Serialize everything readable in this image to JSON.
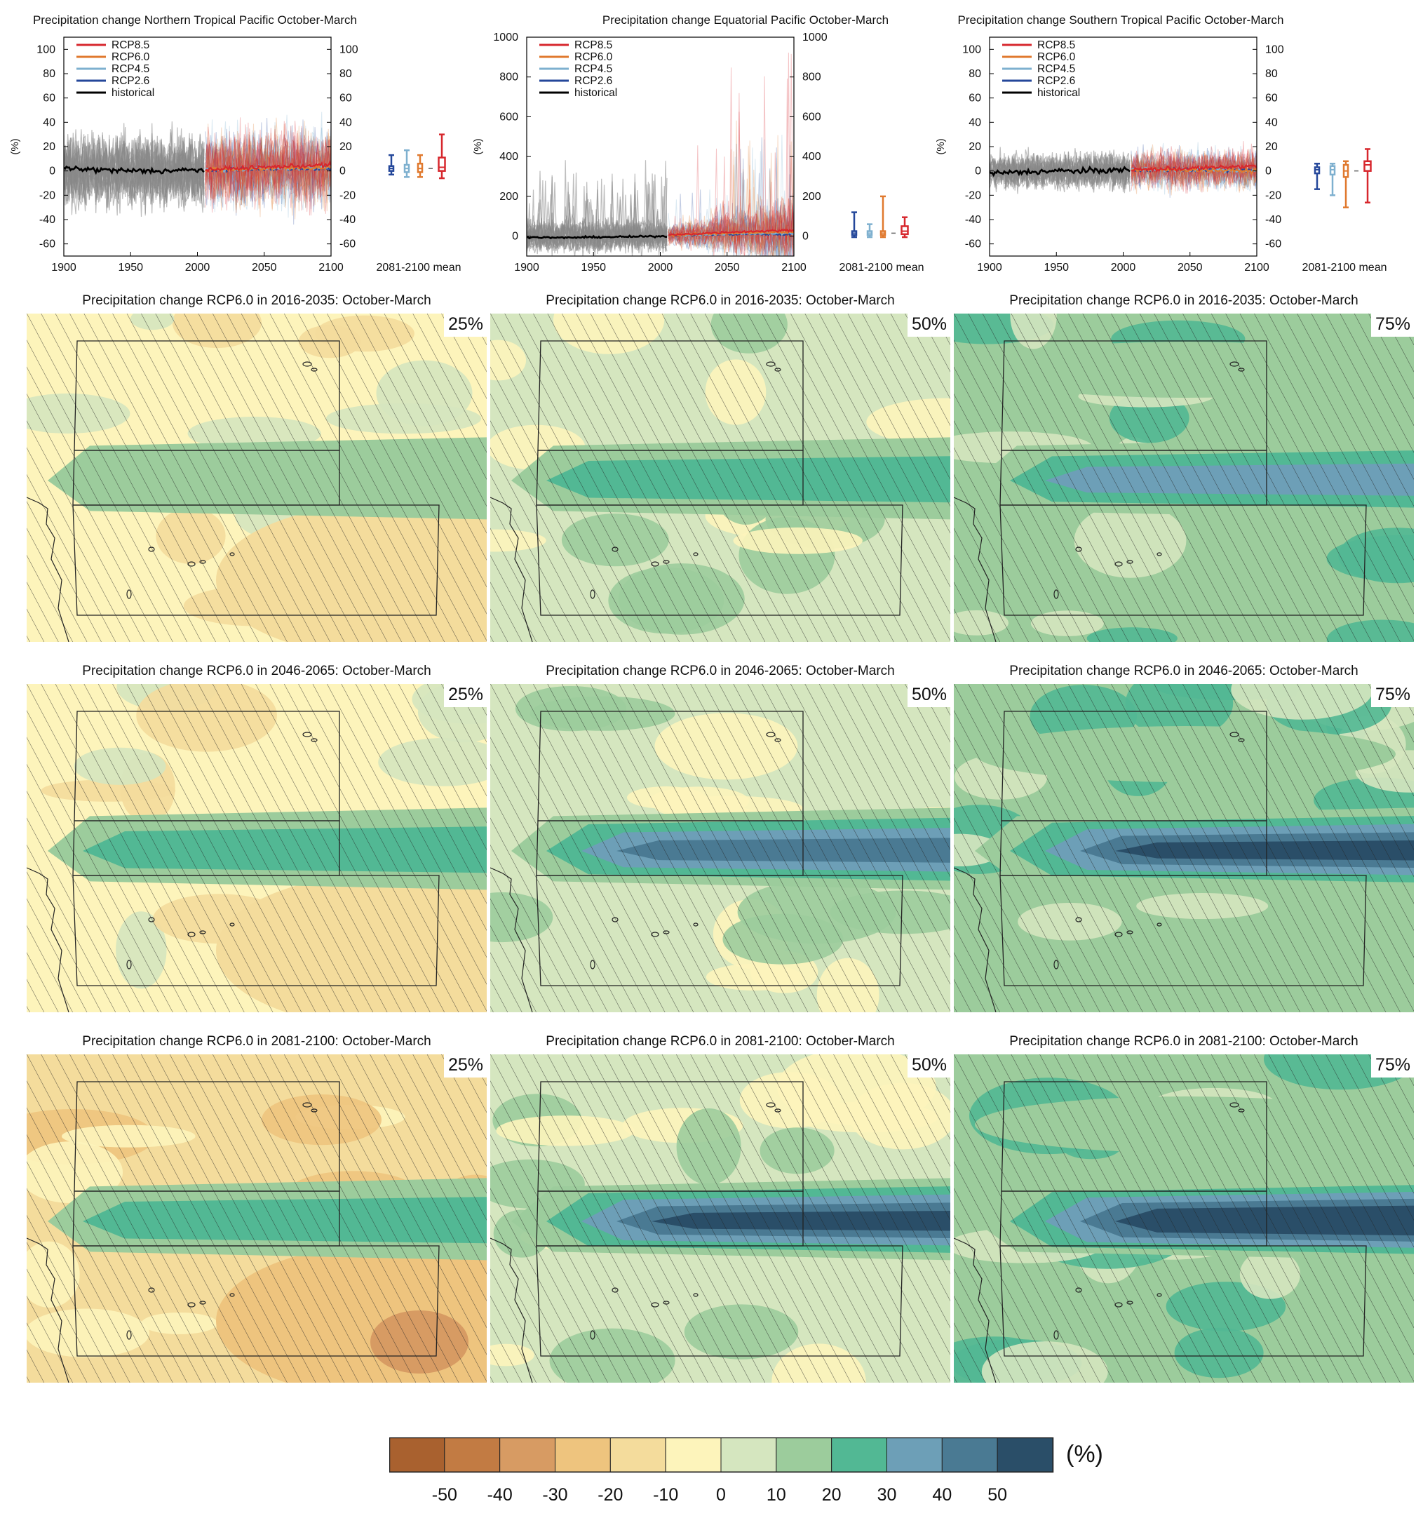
{
  "timeseries_panels": [
    {
      "title": "Precipitation change Northern Tropical Pacific October-March",
      "ylabel": "(%)",
      "mean_label": "2081-2100 mean",
      "yticks": [
        -60,
        -40,
        -20,
        0,
        20,
        40,
        60,
        80,
        100
      ],
      "xticks": [
        1900,
        1950,
        2000,
        2050,
        2100
      ]
    },
    {
      "title": "Precipitation change Equatorial Pacific October-March",
      "ylabel": "(%)",
      "mean_label": "2081-2100 mean",
      "yticks": [
        0,
        200,
        400,
        600,
        800,
        1000
      ],
      "xticks": [
        1900,
        1950,
        2000,
        2050,
        2100
      ]
    },
    {
      "title": "Precipitation change Southern Tropical Pacific October-March",
      "ylabel": "(%)",
      "mean_label": "2081-2100 mean",
      "yticks": [
        -60,
        -40,
        -20,
        0,
        20,
        40,
        60,
        80,
        100
      ],
      "xticks": [
        1900,
        1950,
        2000,
        2050,
        2100
      ]
    }
  ],
  "legend": [
    {
      "label": "RCP8.5",
      "color": "#d7272d"
    },
    {
      "label": "RCP6.0",
      "color": "#e0792e"
    },
    {
      "label": "RCP4.5",
      "color": "#7eb0cf"
    },
    {
      "label": "RCP2.6",
      "color": "#24479a"
    },
    {
      "label": "historical",
      "color": "#000000"
    }
  ],
  "map_titles": [
    "Precipitation change RCP6.0 in 2016-2035: October-March",
    "Precipitation change RCP6.0 in 2046-2065: October-March",
    "Precipitation change RCP6.0 in 2081-2100: October-March"
  ],
  "percentiles": [
    "25%",
    "50%",
    "75%"
  ],
  "colorbar": {
    "unit": "(%)",
    "ticks": [
      "-50",
      "-40",
      "-30",
      "-20",
      "-10",
      "0",
      "10",
      "20",
      "30",
      "40",
      "50"
    ],
    "colors": [
      "#a9612f",
      "#c27b43",
      "#d79b63",
      "#eec47e",
      "#f4dc9c",
      "#fdf4bb",
      "#d5e6bf",
      "#9ccc9c",
      "#52b894",
      "#6d9fb7",
      "#4a7a93",
      "#2a4e68"
    ]
  },
  "chart_data": [
    {
      "type": "line",
      "title": "Precipitation change Northern Tropical Pacific October-March",
      "xlabel": "",
      "ylabel": "(%)",
      "xlim": [
        1900,
        2100
      ],
      "ylim": [
        -70,
        110
      ],
      "legend_position": "top-left",
      "series": [
        {
          "name": "historical",
          "x": [
            1900,
            1925,
            1950,
            1975,
            2005
          ],
          "values": [
            2,
            1,
            0,
            0,
            1
          ]
        },
        {
          "name": "RCP2.6",
          "x": [
            2006,
            2050,
            2100
          ],
          "values": [
            1,
            2,
            2
          ]
        },
        {
          "name": "RCP4.5",
          "x": [
            2006,
            2050,
            2100
          ],
          "values": [
            1,
            2,
            3
          ]
        },
        {
          "name": "RCP6.0",
          "x": [
            2006,
            2050,
            2100
          ],
          "values": [
            1,
            2,
            3
          ]
        },
        {
          "name": "RCP8.5",
          "x": [
            2006,
            2050,
            2100
          ],
          "values": [
            1,
            3,
            5
          ]
        }
      ],
      "boxplots_2081_2100_mean": [
        {
          "name": "RCP2.6",
          "min": -3,
          "q1": 0,
          "median": 2,
          "q3": 4,
          "max": 13
        },
        {
          "name": "RCP4.5",
          "min": -5,
          "q1": -1,
          "median": 2,
          "q3": 5,
          "max": 17
        },
        {
          "name": "RCP6.0",
          "min": -5,
          "q1": -1,
          "median": 2,
          "q3": 6,
          "max": 13
        },
        {
          "name": "RCP8.5",
          "min": -6,
          "q1": 0,
          "median": 3,
          "q3": 11,
          "max": 30
        }
      ]
    },
    {
      "type": "line",
      "title": "Precipitation change Equatorial Pacific October-March",
      "xlabel": "",
      "ylabel": "(%)",
      "xlim": [
        1900,
        2100
      ],
      "ylim": [
        -100,
        1000
      ],
      "legend_position": "top-left",
      "series": [
        {
          "name": "historical",
          "x": [
            1900,
            1925,
            1950,
            1975,
            2005
          ],
          "values": [
            -5,
            -8,
            -5,
            -3,
            0
          ]
        },
        {
          "name": "RCP2.6",
          "x": [
            2006,
            2050,
            2100
          ],
          "values": [
            5,
            10,
            10
          ]
        },
        {
          "name": "RCP4.5",
          "x": [
            2006,
            2050,
            2100
          ],
          "values": [
            5,
            12,
            15
          ]
        },
        {
          "name": "RCP6.0",
          "x": [
            2006,
            2050,
            2100
          ],
          "values": [
            5,
            15,
            20
          ]
        },
        {
          "name": "RCP8.5",
          "x": [
            2006,
            2050,
            2100
          ],
          "values": [
            5,
            20,
            30
          ]
        }
      ],
      "boxplots_2081_2100_mean": [
        {
          "name": "RCP2.6",
          "min": -5,
          "q1": 5,
          "median": 15,
          "q3": 25,
          "max": 120
        },
        {
          "name": "RCP4.5",
          "min": -5,
          "q1": 5,
          "median": 15,
          "q3": 25,
          "max": 60
        },
        {
          "name": "RCP6.0",
          "min": -5,
          "q1": 5,
          "median": 15,
          "q3": 25,
          "max": 200
        },
        {
          "name": "RCP8.5",
          "min": -5,
          "q1": 10,
          "median": 25,
          "q3": 50,
          "max": 95
        }
      ]
    },
    {
      "type": "line",
      "title": "Precipitation change Southern Tropical Pacific October-March",
      "xlabel": "",
      "ylabel": "(%)",
      "xlim": [
        1900,
        2100
      ],
      "ylim": [
        -70,
        110
      ],
      "legend_position": "top-left",
      "series": [
        {
          "name": "historical",
          "x": [
            1900,
            1925,
            1950,
            1975,
            2005
          ],
          "values": [
            -2,
            -1,
            0,
            0,
            1
          ]
        },
        {
          "name": "RCP2.6",
          "x": [
            2006,
            2050,
            2100
          ],
          "values": [
            1,
            1,
            1
          ]
        },
        {
          "name": "RCP4.5",
          "x": [
            2006,
            2050,
            2100
          ],
          "values": [
            1,
            1,
            0
          ]
        },
        {
          "name": "RCP6.0",
          "x": [
            2006,
            2050,
            2100
          ],
          "values": [
            1,
            1,
            0
          ]
        },
        {
          "name": "RCP8.5",
          "x": [
            2006,
            2050,
            2100
          ],
          "values": [
            1,
            2,
            4
          ]
        }
      ],
      "boxplots_2081_2100_mean": [
        {
          "name": "RCP2.6",
          "min": -15,
          "q1": -2,
          "median": 1,
          "q3": 3,
          "max": 6
        },
        {
          "name": "RCP4.5",
          "min": -20,
          "q1": -3,
          "median": 1,
          "q3": 4,
          "max": 6
        },
        {
          "name": "RCP6.0",
          "min": -30,
          "q1": -5,
          "median": 0,
          "q3": 5,
          "max": 8
        },
        {
          "name": "RCP8.5",
          "min": -26,
          "q1": 0,
          "median": 5,
          "q3": 8,
          "max": 18
        }
      ]
    },
    {
      "type": "heatmap",
      "description_type": "map grid 3x3",
      "rows": [
        "2016-2035",
        "2046-2065",
        "2081-2100"
      ],
      "columns": [
        "25%",
        "50%",
        "75%"
      ],
      "colorbar_ticks": [
        -50,
        -40,
        -30,
        -20,
        -10,
        0,
        10,
        20,
        30,
        40,
        50
      ],
      "equatorial_band_max_change": [
        [
          10,
          20,
          30
        ],
        [
          20,
          40,
          50
        ],
        [
          20,
          50,
          60
        ]
      ],
      "background_change": [
        [
          -10,
          0,
          10
        ],
        [
          -10,
          0,
          10
        ],
        [
          -20,
          0,
          10
        ]
      ]
    }
  ]
}
